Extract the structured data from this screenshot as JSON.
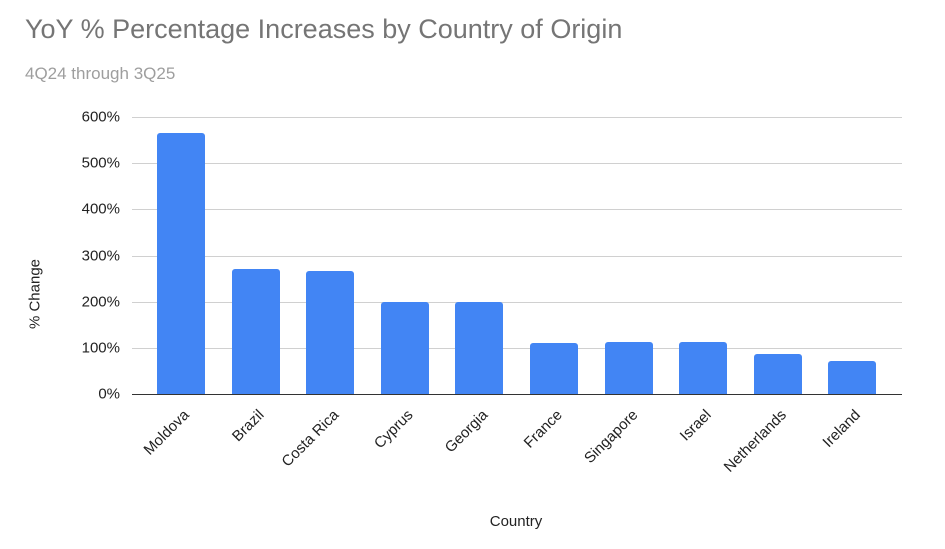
{
  "chart_data": {
    "type": "bar",
    "title": "YoY % Percentage Increases by Country of Origin",
    "subtitle": "4Q24 through 3Q25",
    "xlabel": "Country",
    "ylabel": "% Change",
    "categories": [
      "Moldova",
      "Brazil",
      "Costa Rica",
      "Cyprus",
      "Georgia",
      "France",
      "Singapore",
      "Israel",
      "Netherlands",
      "Ireland"
    ],
    "values": [
      566,
      271,
      266,
      200,
      200,
      110,
      113,
      113,
      87,
      71
    ],
    "value_format": "percent",
    "ylim": [
      0,
      600
    ],
    "yticks": [
      "0%",
      "100%",
      "200%",
      "300%",
      "400%",
      "500%",
      "600%"
    ],
    "grid": true,
    "legend": "none",
    "bar_color": "#4285f4"
  }
}
